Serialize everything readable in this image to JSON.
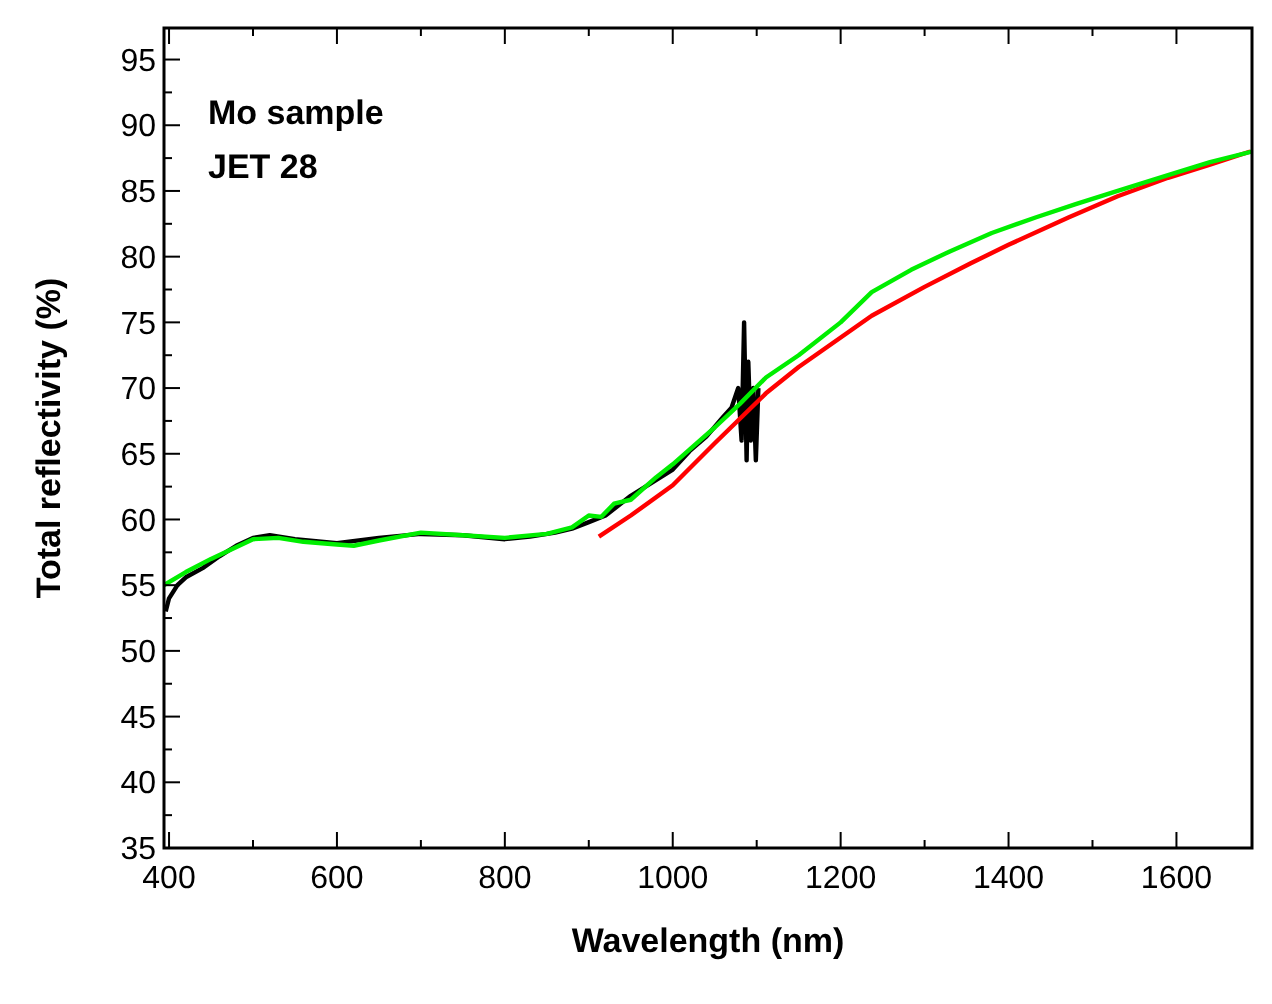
{
  "chart_data": {
    "type": "line",
    "xlabel": "Wavelength (nm)",
    "ylabel": "Total reflectivity (%)",
    "annotations": [
      "Mo sample",
      "JET 28"
    ],
    "xlim": [
      394,
      1690
    ],
    "ylim": [
      35,
      97.4
    ],
    "xticks": [
      400,
      600,
      800,
      1000,
      1200,
      1400,
      1600
    ],
    "yticks": [
      35,
      40,
      45,
      50,
      55,
      60,
      65,
      70,
      75,
      80,
      85,
      90,
      95
    ],
    "grid": false,
    "series": [
      {
        "color": "#000000",
        "x": [
          396,
          400,
          410,
          420,
          440,
          460,
          480,
          500,
          520,
          550,
          600,
          650,
          700,
          750,
          800,
          830,
          860,
          880,
          900,
          920,
          950,
          980,
          1000,
          1020,
          1040,
          1060,
          1070,
          1078,
          1082,
          1085,
          1088,
          1090,
          1093,
          1096,
          1099,
          1102
        ],
        "values": [
          53,
          54,
          55,
          55.6,
          56.3,
          57.2,
          58,
          58.6,
          58.8,
          58.5,
          58.2,
          58.6,
          58.9,
          58.8,
          58.5,
          58.7,
          59,
          59.3,
          59.8,
          60.3,
          61.8,
          63,
          63.8,
          65.2,
          66.3,
          67.8,
          68.5,
          70,
          66,
          75,
          64.5,
          72,
          66,
          70,
          64.5,
          70
        ]
      },
      {
        "color": "#ff0000",
        "x": [
          912,
          950,
          1000,
          1050,
          1111,
          1150,
          1237,
          1300,
          1355,
          1400,
          1472,
          1530,
          1590,
          1640,
          1688
        ],
        "values": [
          58.7,
          60.3,
          62.6,
          65.8,
          69.6,
          71.6,
          75.5,
          77.7,
          79.5,
          80.9,
          83,
          84.6,
          86,
          87,
          88
        ]
      },
      {
        "color": "#00ee00",
        "x": [
          394,
          420,
          450,
          500,
          530,
          560,
          600,
          620,
          650,
          700,
          750,
          800,
          850,
          880,
          900,
          915,
          930,
          950,
          980,
          1000,
          1025,
          1050,
          1080,
          1111,
          1150,
          1200,
          1237,
          1284,
          1330,
          1380,
          1433,
          1480,
          1530,
          1590,
          1640,
          1690
        ],
        "values": [
          55,
          56,
          57,
          58.5,
          58.6,
          58.3,
          58.1,
          58,
          58.4,
          59,
          58.8,
          58.6,
          58.9,
          59.4,
          60.3,
          60.2,
          61.2,
          61.5,
          63.2,
          64.2,
          65.6,
          67,
          68.8,
          70.8,
          72.5,
          75,
          77.3,
          79,
          80.4,
          81.8,
          83,
          84,
          85,
          86.2,
          87.2,
          88
        ]
      }
    ]
  }
}
